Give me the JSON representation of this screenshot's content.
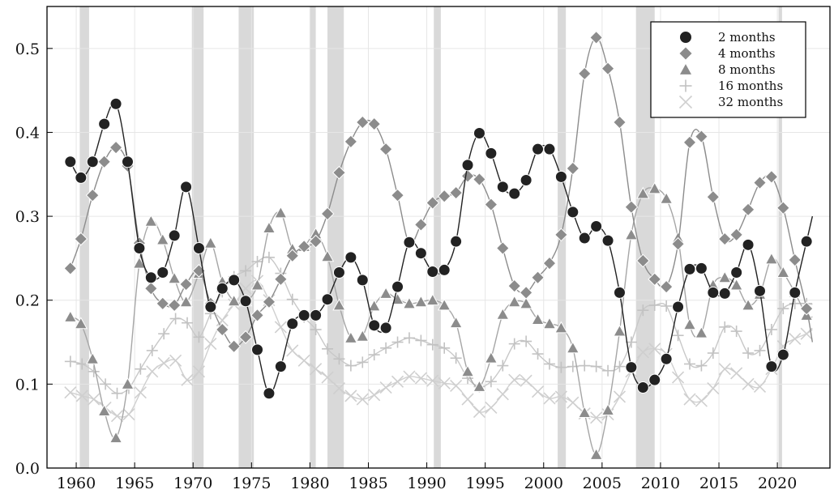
{
  "chart_data": {
    "type": "line",
    "title": "",
    "xlabel": "",
    "ylabel": "",
    "xlim": [
      1957.5,
      2024.5
    ],
    "ylim": [
      0,
      0.55
    ],
    "xticks": [
      1960,
      1965,
      1970,
      1975,
      1980,
      1985,
      1990,
      1995,
      2000,
      2005,
      2010,
      2015,
      2020
    ],
    "yticks": [
      0.0,
      0.1,
      0.2,
      0.3,
      0.4,
      0.5
    ],
    "xtick_labels": [
      "1960",
      "1965",
      "1970",
      "1975",
      "1980",
      "1985",
      "1990",
      "1995",
      "2000",
      "2005",
      "2010",
      "2015",
      "2020"
    ],
    "ytick_labels": [
      "0.0",
      "0.1",
      "0.2",
      "0.3",
      "0.4",
      "0.5"
    ],
    "grid": true,
    "legend_position": "top-right",
    "recessions": [
      [
        1960.3,
        1961.1
      ],
      [
        1969.9,
        1970.9
      ],
      [
        1973.9,
        1975.2
      ],
      [
        1980.0,
        1980.5
      ],
      [
        1981.5,
        1982.9
      ],
      [
        1990.6,
        1991.2
      ],
      [
        2001.2,
        2001.9
      ],
      [
        2007.9,
        2009.5
      ],
      [
        2020.1,
        2020.4
      ]
    ],
    "series": [
      {
        "name": "2 months",
        "marker": "circle",
        "color": "#222222",
        "line_color": "#222222",
        "x": [
          1959.5,
          1960.4,
          1961.4,
          1962.4,
          1963.4,
          1964.4,
          1965.4,
          1966.4,
          1967.4,
          1968.4,
          1969.4,
          1970.5,
          1971.5,
          1972.5,
          1973.5,
          1974.5,
          1975.5,
          1976.5,
          1977.5,
          1978.5,
          1979.5,
          1980.5,
          1981.5,
          1982.5,
          1983.5,
          1984.5,
          1985.5,
          1986.5,
          1987.5,
          1988.5,
          1989.5,
          1990.5,
          1991.5,
          1992.5,
          1993.5,
          1994.5,
          1995.5,
          1996.5,
          1997.5,
          1998.5,
          1999.5,
          2000.5,
          2001.5,
          2002.5,
          2003.5,
          2004.5,
          2005.5,
          2006.5,
          2007.5,
          2008.5,
          2009.5,
          2010.5,
          2011.5,
          2012.5,
          2013.5,
          2014.5,
          2015.5,
          2016.5,
          2017.5,
          2018.5,
          2019.5,
          2020.5,
          2021.5,
          2022.5,
          2023.0
        ],
        "y": [
          0.365,
          0.346,
          0.365,
          0.41,
          0.434,
          0.365,
          0.262,
          0.227,
          0.233,
          0.277,
          0.335,
          0.262,
          0.192,
          0.214,
          0.224,
          0.199,
          0.141,
          0.089,
          0.121,
          0.172,
          0.182,
          0.182,
          0.201,
          0.233,
          0.251,
          0.224,
          0.17,
          0.167,
          0.216,
          0.269,
          0.256,
          0.234,
          0.236,
          0.27,
          0.361,
          0.399,
          0.375,
          0.335,
          0.327,
          0.343,
          0.38,
          0.38,
          0.347,
          0.305,
          0.274,
          0.288,
          0.271,
          0.209,
          0.12,
          0.096,
          0.105,
          0.13,
          0.192,
          0.237,
          0.238,
          0.209,
          0.208,
          0.233,
          0.266,
          0.211,
          0.121,
          0.135,
          0.209,
          0.27,
          0.3
        ],
        "marker_count": 64
      },
      {
        "name": "4 months",
        "marker": "diamond",
        "color": "#8c8c8c",
        "line_color": "#8c8c8c",
        "x": [
          1959.5,
          1960.4,
          1961.4,
          1962.4,
          1963.4,
          1964.4,
          1965.4,
          1966.4,
          1967.4,
          1968.4,
          1969.4,
          1970.5,
          1971.5,
          1972.5,
          1973.5,
          1974.5,
          1975.5,
          1976.5,
          1977.5,
          1978.5,
          1979.5,
          1980.5,
          1981.5,
          1982.5,
          1983.5,
          1984.5,
          1985.5,
          1986.5,
          1987.5,
          1988.5,
          1989.5,
          1990.5,
          1991.5,
          1992.5,
          1993.5,
          1994.5,
          1995.5,
          1996.5,
          1997.5,
          1998.5,
          1999.5,
          2000.5,
          2001.5,
          2002.5,
          2003.5,
          2004.5,
          2005.5,
          2006.5,
          2007.5,
          2008.5,
          2009.5,
          2010.5,
          2011.5,
          2012.5,
          2013.5,
          2014.5,
          2015.5,
          2016.5,
          2017.5,
          2018.5,
          2019.5,
          2020.5,
          2021.5,
          2022.5,
          2023.0
        ],
        "y": [
          0.238,
          0.273,
          0.325,
          0.365,
          0.382,
          0.36,
          0.268,
          0.214,
          0.196,
          0.194,
          0.219,
          0.235,
          0.196,
          0.165,
          0.145,
          0.156,
          0.182,
          0.198,
          0.225,
          0.253,
          0.264,
          0.27,
          0.303,
          0.352,
          0.389,
          0.412,
          0.41,
          0.38,
          0.325,
          0.268,
          0.29,
          0.316,
          0.324,
          0.328,
          0.348,
          0.344,
          0.314,
          0.262,
          0.217,
          0.209,
          0.227,
          0.244,
          0.278,
          0.357,
          0.47,
          0.513,
          0.476,
          0.412,
          0.311,
          0.247,
          0.225,
          0.216,
          0.267,
          0.388,
          0.395,
          0.323,
          0.273,
          0.278,
          0.308,
          0.34,
          0.347,
          0.31,
          0.248,
          0.19,
          0.15
        ],
        "marker_count": 64
      },
      {
        "name": "8 months",
        "marker": "triangle",
        "color": "#8c8c8c",
        "line_color": "#a6a6a6",
        "x": [
          1959.5,
          1960.4,
          1961.4,
          1962.4,
          1963.4,
          1964.4,
          1965.4,
          1966.4,
          1967.4,
          1968.4,
          1969.4,
          1970.5,
          1971.5,
          1972.5,
          1973.5,
          1974.5,
          1975.5,
          1976.5,
          1977.5,
          1978.5,
          1979.5,
          1980.5,
          1981.5,
          1982.5,
          1983.5,
          1984.5,
          1985.5,
          1986.5,
          1987.5,
          1988.5,
          1989.5,
          1990.5,
          1991.5,
          1992.5,
          1993.5,
          1994.5,
          1995.5,
          1996.5,
          1997.5,
          1998.5,
          1999.5,
          2000.5,
          2001.5,
          2002.5,
          2003.5,
          2004.5,
          2005.5,
          2006.5,
          2007.5,
          2008.5,
          2009.5,
          2010.5,
          2011.5,
          2012.5,
          2013.5,
          2014.5,
          2015.5,
          2016.5,
          2017.5,
          2018.5,
          2019.5,
          2020.5,
          2021.5,
          2022.5,
          2023.0
        ],
        "y": [
          0.18,
          0.172,
          0.13,
          0.068,
          0.036,
          0.1,
          0.244,
          0.294,
          0.272,
          0.226,
          0.198,
          0.232,
          0.268,
          0.222,
          0.199,
          0.199,
          0.218,
          0.286,
          0.304,
          0.261,
          0.264,
          0.279,
          0.252,
          0.194,
          0.155,
          0.157,
          0.193,
          0.208,
          0.201,
          0.196,
          0.198,
          0.2,
          0.194,
          0.173,
          0.115,
          0.097,
          0.131,
          0.183,
          0.198,
          0.196,
          0.177,
          0.172,
          0.167,
          0.143,
          0.066,
          0.016,
          0.069,
          0.163,
          0.278,
          0.327,
          0.333,
          0.321,
          0.274,
          0.171,
          0.161,
          0.218,
          0.227,
          0.218,
          0.194,
          0.207,
          0.249,
          0.233,
          0.209,
          0.182,
          0.18
        ],
        "marker_count": 64
      },
      {
        "name": "16 months",
        "marker": "plus",
        "color": "#c2c2c2",
        "line_color": "#c8c8c8",
        "x": [
          1959.5,
          1960.5,
          1961.5,
          1962.5,
          1963.5,
          1964.5,
          1965.5,
          1966.5,
          1967.5,
          1968.5,
          1969.5,
          1970.5,
          1971.5,
          1972.5,
          1973.5,
          1974.5,
          1975.5,
          1976.5,
          1977.5,
          1978.5,
          1979.5,
          1980.5,
          1981.5,
          1982.5,
          1983.5,
          1984.5,
          1985.5,
          1986.5,
          1987.5,
          1988.5,
          1989.5,
          1990.5,
          1991.5,
          1992.5,
          1993.5,
          1994.5,
          1995.5,
          1996.5,
          1997.5,
          1998.5,
          1999.5,
          2000.5,
          2001.5,
          2002.5,
          2003.5,
          2004.5,
          2005.5,
          2006.5,
          2007.5,
          2008.5,
          2009.5,
          2010.5,
          2011.5,
          2012.5,
          2013.5,
          2014.5,
          2015.5,
          2016.5,
          2017.5,
          2018.5,
          2019.5,
          2020.5,
          2021.5,
          2022.5,
          2023.0
        ],
        "y": [
          0.127,
          0.124,
          0.115,
          0.1,
          0.089,
          0.095,
          0.118,
          0.14,
          0.16,
          0.178,
          0.173,
          0.156,
          0.184,
          0.21,
          0.228,
          0.235,
          0.246,
          0.251,
          0.232,
          0.201,
          0.18,
          0.165,
          0.142,
          0.13,
          0.122,
          0.126,
          0.135,
          0.143,
          0.15,
          0.155,
          0.152,
          0.147,
          0.143,
          0.131,
          0.107,
          0.097,
          0.103,
          0.122,
          0.148,
          0.151,
          0.136,
          0.124,
          0.12,
          0.121,
          0.122,
          0.121,
          0.116,
          0.121,
          0.15,
          0.188,
          0.194,
          0.193,
          0.158,
          0.124,
          0.122,
          0.137,
          0.168,
          0.163,
          0.137,
          0.14,
          0.165,
          0.19,
          0.196,
          0.196,
          0.195
        ],
        "marker_count": 64
      },
      {
        "name": "32 months",
        "marker": "cross",
        "color": "#cfcfcf",
        "line_color": "#d0d0d0",
        "x": [
          1959.5,
          1960.5,
          1961.5,
          1962.5,
          1963.5,
          1964.5,
          1965.5,
          1966.5,
          1967.5,
          1968.5,
          1969.5,
          1970.5,
          1971.5,
          1972.5,
          1973.5,
          1974.5,
          1975.5,
          1976.5,
          1977.5,
          1978.5,
          1979.5,
          1980.5,
          1981.5,
          1982.5,
          1983.5,
          1984.5,
          1985.5,
          1986.5,
          1987.5,
          1988.5,
          1989.5,
          1990.5,
          1991.5,
          1992.5,
          1993.5,
          1994.5,
          1995.5,
          1996.5,
          1997.5,
          1998.5,
          1999.5,
          2000.5,
          2001.5,
          2002.5,
          2003.5,
          2004.5,
          2005.5,
          2006.5,
          2007.5,
          2008.5,
          2009.5,
          2010.5,
          2011.5,
          2012.5,
          2013.5,
          2014.5,
          2015.5,
          2016.5,
          2017.5,
          2018.5,
          2019.5,
          2020.5,
          2021.5,
          2022.5,
          2023.0
        ],
        "y": [
          0.09,
          0.086,
          0.082,
          0.072,
          0.062,
          0.064,
          0.09,
          0.115,
          0.125,
          0.128,
          0.105,
          0.115,
          0.148,
          0.176,
          0.195,
          0.214,
          0.223,
          0.2,
          0.168,
          0.14,
          0.128,
          0.118,
          0.108,
          0.095,
          0.086,
          0.082,
          0.087,
          0.096,
          0.103,
          0.109,
          0.107,
          0.104,
          0.101,
          0.098,
          0.082,
          0.067,
          0.072,
          0.088,
          0.105,
          0.104,
          0.091,
          0.083,
          0.085,
          0.078,
          0.065,
          0.06,
          0.064,
          0.085,
          0.115,
          0.138,
          0.142,
          0.136,
          0.108,
          0.082,
          0.08,
          0.095,
          0.118,
          0.113,
          0.1,
          0.097,
          0.118,
          0.145,
          0.154,
          0.16,
          0.165
        ],
        "marker_count": 64
      }
    ]
  }
}
